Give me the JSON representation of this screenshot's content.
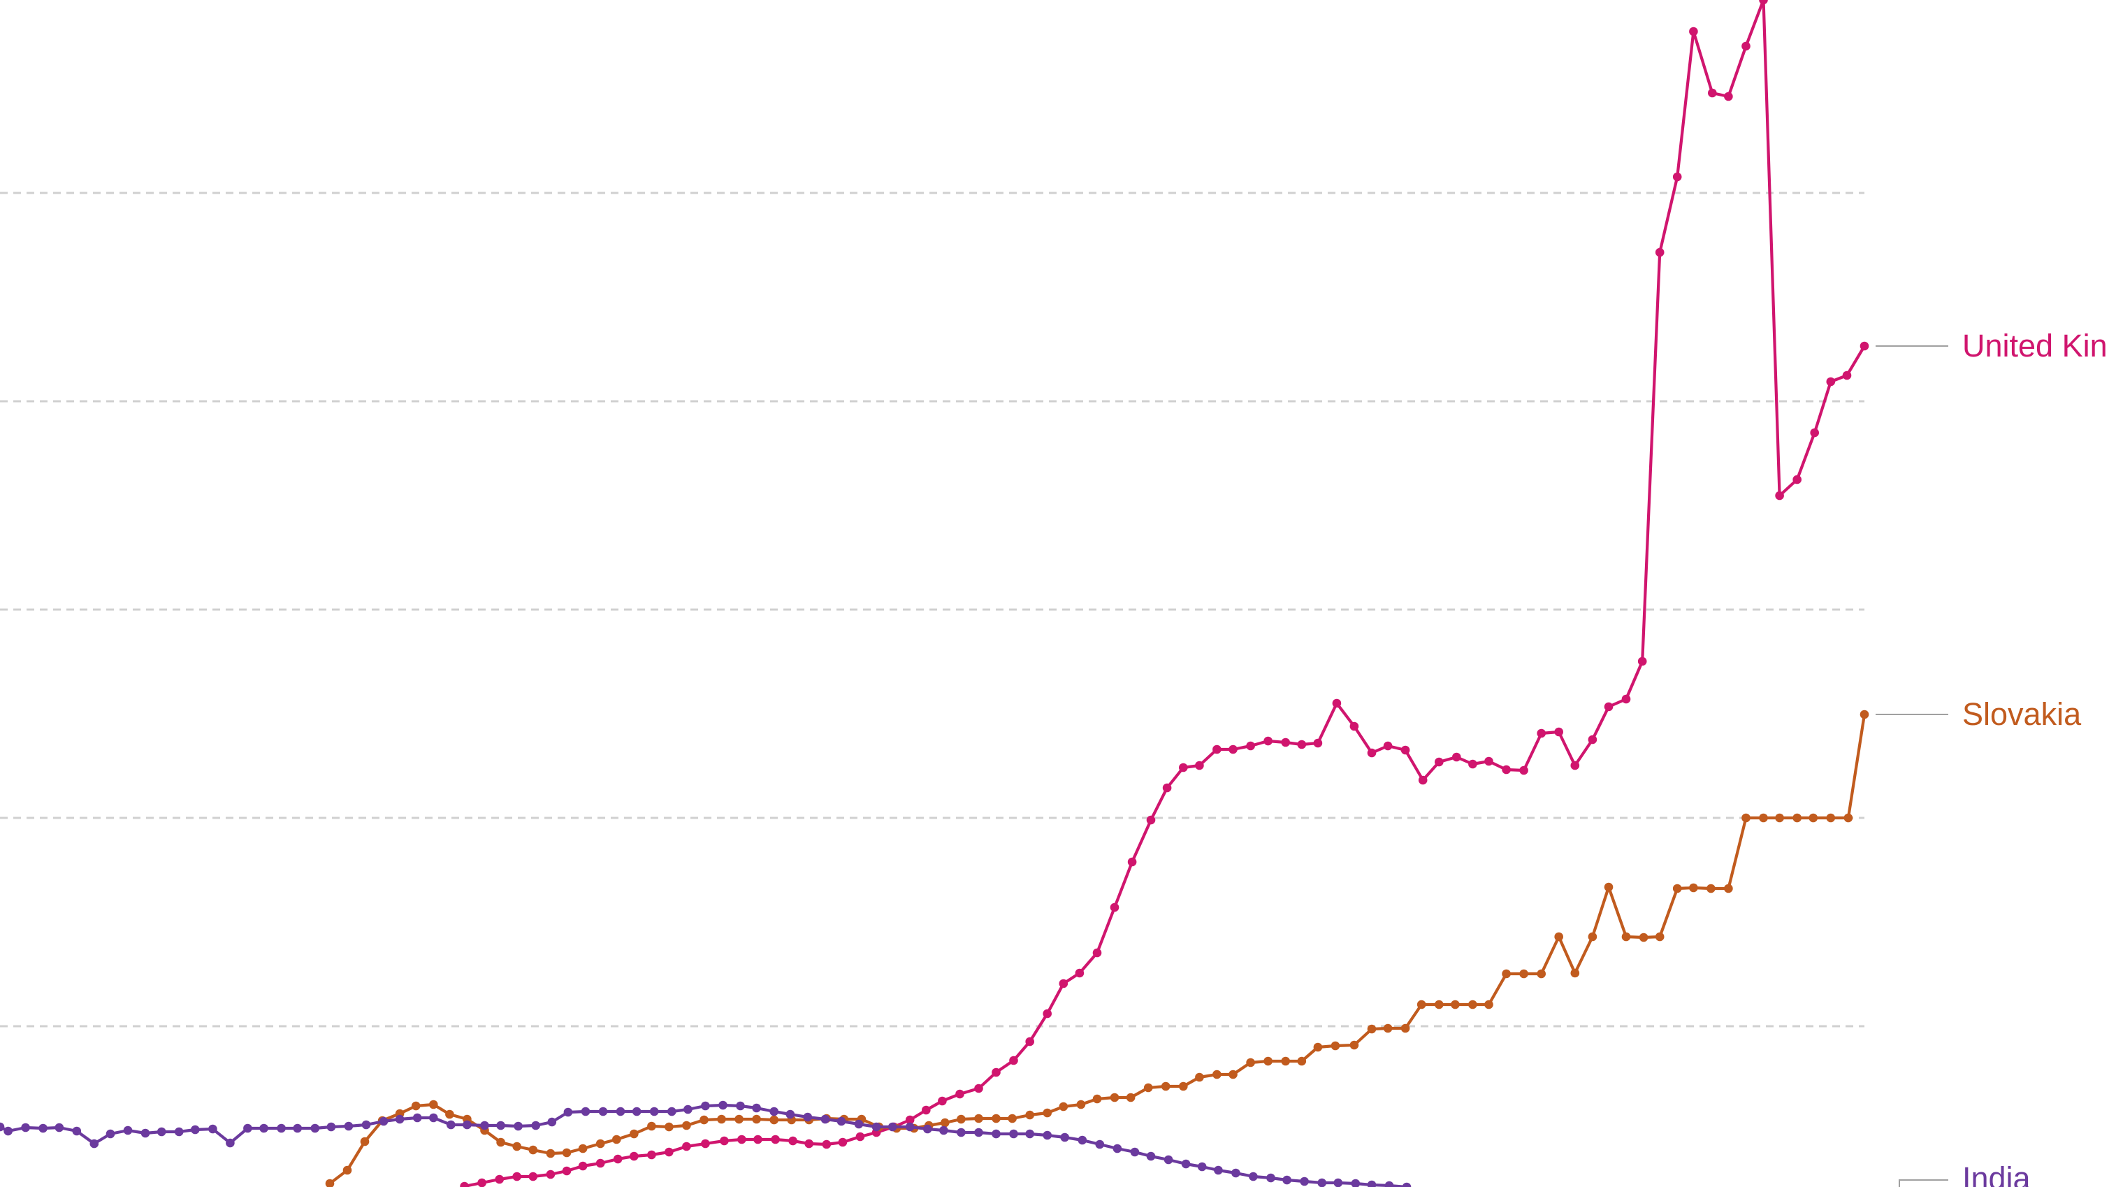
{
  "chart_data": {
    "type": "line",
    "xlim": [
      0,
      1385
    ],
    "ylim": [
      0,
      1698
    ],
    "grid": true,
    "legend": "line-end labels",
    "series": [
      {
        "name": "United Kingdom",
        "label": "United Kin",
        "color": "#d0156e",
        "points": [
          [
            345,
            1697
          ],
          [
            358,
            1692
          ],
          [
            371,
            1687
          ],
          [
            384,
            1683
          ],
          [
            396,
            1683
          ],
          [
            409,
            1680
          ],
          [
            421,
            1675
          ],
          [
            433,
            1668
          ],
          [
            446,
            1664
          ],
          [
            459,
            1658
          ],
          [
            471,
            1654
          ],
          [
            484,
            1652
          ],
          [
            497,
            1648
          ],
          [
            510,
            1640
          ],
          [
            524,
            1636
          ],
          [
            538,
            1632
          ],
          [
            551,
            1630
          ],
          [
            563,
            1630
          ],
          [
            576,
            1630
          ],
          [
            589,
            1632
          ],
          [
            601,
            1636
          ],
          [
            614,
            1637
          ],
          [
            626,
            1634
          ],
          [
            639,
            1626
          ],
          [
            651,
            1620
          ],
          [
            664,
            1612
          ],
          [
            676,
            1602
          ],
          [
            688,
            1588
          ],
          [
            700,
            1575
          ],
          [
            713,
            1565
          ],
          [
            727,
            1557
          ],
          [
            740,
            1534
          ],
          [
            753,
            1517
          ],
          [
            765,
            1490
          ],
          [
            778,
            1450
          ],
          [
            790,
            1407
          ],
          [
            802,
            1392
          ],
          [
            815,
            1363
          ],
          [
            828,
            1298
          ],
          [
            841,
            1233
          ],
          [
            855,
            1173
          ],
          [
            867,
            1127
          ],
          [
            879,
            1098
          ],
          [
            891,
            1095
          ],
          [
            904,
            1072
          ],
          [
            916,
            1072
          ],
          [
            929,
            1067
          ],
          [
            942,
            1060
          ],
          [
            955,
            1062
          ],
          [
            967,
            1065
          ],
          [
            979,
            1063
          ],
          [
            993,
            1006
          ],
          [
            1006,
            1039
          ],
          [
            1019,
            1077
          ],
          [
            1031,
            1067
          ],
          [
            1044,
            1073
          ],
          [
            1057,
            1116
          ],
          [
            1069,
            1090
          ],
          [
            1082,
            1083
          ],
          [
            1094,
            1093
          ],
          [
            1106,
            1089
          ],
          [
            1119,
            1101
          ],
          [
            1132,
            1102
          ],
          [
            1145,
            1049
          ],
          [
            1158,
            1047
          ],
          [
            1170,
            1095
          ],
          [
            1183,
            1058
          ],
          [
            1195,
            1011
          ],
          [
            1208,
            1000
          ],
          [
            1220,
            946
          ],
          [
            1233,
            361
          ],
          [
            1246,
            253
          ],
          [
            1258,
            45
          ],
          [
            1272,
            133
          ],
          [
            1284,
            138
          ],
          [
            1297,
            66
          ],
          [
            1310,
            0
          ],
          [
            1322,
            709
          ],
          [
            1335,
            686
          ],
          [
            1348,
            619
          ],
          [
            1360,
            546
          ],
          [
            1372,
            537
          ],
          [
            1385,
            495
          ]
        ]
      },
      {
        "name": "Slovakia",
        "label": "Slovakia",
        "color": "#c15b1e",
        "points": [
          [
            245,
            1693
          ],
          [
            258,
            1674
          ],
          [
            271,
            1633
          ],
          [
            284,
            1603
          ],
          [
            297,
            1593
          ],
          [
            309,
            1582
          ],
          [
            322,
            1580
          ],
          [
            334,
            1594
          ],
          [
            347,
            1601
          ],
          [
            360,
            1617
          ],
          [
            372,
            1634
          ],
          [
            384,
            1640
          ],
          [
            396,
            1645
          ],
          [
            409,
            1650
          ],
          [
            421,
            1649
          ],
          [
            433,
            1643
          ],
          [
            446,
            1636
          ],
          [
            458,
            1630
          ],
          [
            471,
            1622
          ],
          [
            484,
            1611
          ],
          [
            497,
            1612
          ],
          [
            510,
            1610
          ],
          [
            523,
            1602
          ],
          [
            536,
            1601
          ],
          [
            549,
            1601
          ],
          [
            562,
            1601
          ],
          [
            575,
            1602
          ],
          [
            588,
            1602
          ],
          [
            601,
            1602
          ],
          [
            614,
            1600
          ],
          [
            627,
            1601
          ],
          [
            640,
            1601
          ],
          [
            653,
            1612
          ],
          [
            666,
            1614
          ],
          [
            679,
            1614
          ],
          [
            690,
            1610
          ],
          [
            702,
            1606
          ],
          [
            714,
            1601
          ],
          [
            727,
            1600
          ],
          [
            740,
            1600
          ],
          [
            752,
            1600
          ],
          [
            765,
            1595
          ],
          [
            778,
            1592
          ],
          [
            790,
            1583
          ],
          [
            803,
            1580
          ],
          [
            815,
            1572
          ],
          [
            828,
            1570
          ],
          [
            840,
            1570
          ],
          [
            853,
            1556
          ],
          [
            866,
            1554
          ],
          [
            879,
            1554
          ],
          [
            891,
            1541
          ],
          [
            904,
            1537
          ],
          [
            916,
            1537
          ],
          [
            929,
            1520
          ],
          [
            942,
            1518
          ],
          [
            955,
            1518
          ],
          [
            967,
            1518
          ],
          [
            979,
            1498
          ],
          [
            992,
            1496
          ],
          [
            1006,
            1495
          ],
          [
            1019,
            1472
          ],
          [
            1031,
            1471
          ],
          [
            1044,
            1471
          ],
          [
            1056,
            1437
          ],
          [
            1069,
            1437
          ],
          [
            1081,
            1437
          ],
          [
            1094,
            1437
          ],
          [
            1106,
            1437
          ],
          [
            1119,
            1393
          ],
          [
            1132,
            1393
          ],
          [
            1145,
            1393
          ],
          [
            1158,
            1340
          ],
          [
            1170,
            1392
          ],
          [
            1183,
            1340
          ],
          [
            1195,
            1269
          ],
          [
            1208,
            1340
          ],
          [
            1221,
            1341
          ],
          [
            1233,
            1340
          ],
          [
            1246,
            1271
          ],
          [
            1258,
            1270
          ],
          [
            1271,
            1271
          ],
          [
            1284,
            1271
          ],
          [
            1297,
            1170
          ],
          [
            1310,
            1170
          ],
          [
            1322,
            1170
          ],
          [
            1335,
            1170
          ],
          [
            1347,
            1170
          ],
          [
            1360,
            1170
          ],
          [
            1373,
            1170
          ],
          [
            1385,
            1022
          ]
        ]
      },
      {
        "name": "India",
        "label": "India",
        "color": "#6b3a9e",
        "points": [
          [
            0,
            1612
          ],
          [
            6,
            1618
          ],
          [
            19,
            1613
          ],
          [
            32,
            1614
          ],
          [
            44,
            1613
          ],
          [
            57,
            1618
          ],
          [
            70,
            1636
          ],
          [
            82,
            1622
          ],
          [
            95,
            1617
          ],
          [
            108,
            1621
          ],
          [
            120,
            1619
          ],
          [
            133,
            1619
          ],
          [
            145,
            1616
          ],
          [
            158,
            1615
          ],
          [
            171,
            1635
          ],
          [
            184,
            1614
          ],
          [
            196,
            1614
          ],
          [
            209,
            1614
          ],
          [
            221,
            1614
          ],
          [
            234,
            1614
          ],
          [
            246,
            1612
          ],
          [
            259,
            1611
          ],
          [
            272,
            1609
          ],
          [
            285,
            1604
          ],
          [
            297,
            1601
          ],
          [
            310,
            1599
          ],
          [
            322,
            1599
          ],
          [
            335,
            1609
          ],
          [
            347,
            1609
          ],
          [
            360,
            1610
          ],
          [
            372,
            1610
          ],
          [
            385,
            1611
          ],
          [
            398,
            1610
          ],
          [
            410,
            1605
          ],
          [
            422,
            1591
          ],
          [
            435,
            1590
          ],
          [
            448,
            1590
          ],
          [
            461,
            1590
          ],
          [
            473,
            1590
          ],
          [
            486,
            1590
          ],
          [
            499,
            1590
          ],
          [
            511,
            1587
          ],
          [
            524,
            1582
          ],
          [
            537,
            1581
          ],
          [
            550,
            1582
          ],
          [
            562,
            1585
          ],
          [
            575,
            1590
          ],
          [
            587,
            1594
          ],
          [
            600,
            1598
          ],
          [
            613,
            1601
          ],
          [
            625,
            1604
          ],
          [
            638,
            1608
          ],
          [
            651,
            1612
          ],
          [
            663,
            1612
          ],
          [
            676,
            1612
          ],
          [
            689,
            1615
          ],
          [
            701,
            1617
          ],
          [
            714,
            1620
          ],
          [
            727,
            1620
          ],
          [
            740,
            1622
          ],
          [
            753,
            1622
          ],
          [
            765,
            1622
          ],
          [
            778,
            1624
          ],
          [
            791,
            1627
          ],
          [
            804,
            1631
          ],
          [
            817,
            1637
          ],
          [
            830,
            1643
          ],
          [
            843,
            1648
          ],
          [
            855,
            1654
          ],
          [
            868,
            1659
          ],
          [
            881,
            1665
          ],
          [
            893,
            1669
          ],
          [
            905,
            1674
          ],
          [
            918,
            1678
          ],
          [
            931,
            1683
          ],
          [
            944,
            1685
          ],
          [
            956,
            1688
          ],
          [
            969,
            1690
          ],
          [
            982,
            1692
          ],
          [
            994,
            1692
          ],
          [
            1007,
            1693
          ],
          [
            1019,
            1695
          ],
          [
            1032,
            1696
          ],
          [
            1045,
            1698
          ]
        ]
      }
    ]
  }
}
